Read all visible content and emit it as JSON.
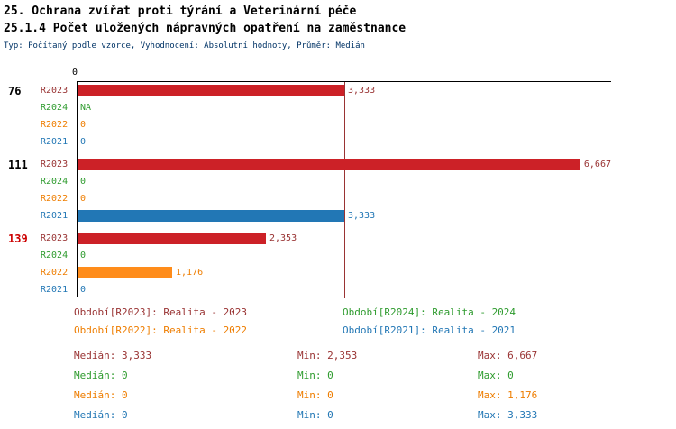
{
  "title_line1": "25. Ochrana zvířat proti týrání a Veterinární péče",
  "title_line2": "25.1.4 Počet uložených nápravných opatření na zaměstnance",
  "subtitle": "Typ: Počítaný podle vzorce, Vyhodnocení: Absolutní hodnoty, Průměr: Medián",
  "colors": {
    "series": {
      "R2023": {
        "bar": "#cc2127",
        "text": "#993333"
      },
      "R2024": {
        "bar": "#2e9b2e",
        "text": "#2e9b2e"
      },
      "R2022": {
        "bar": "#ff8c1a",
        "text": "#ee7d00"
      },
      "R2021": {
        "bar": "#2277b5",
        "text": "#2277b5"
      }
    },
    "median_line": "#993333",
    "subtitle_text": "#003366",
    "axis": "#000000"
  },
  "chart_data": {
    "type": "bar",
    "orientation": "horizontal",
    "title": "25.1.4 Počet uložených nápravných opatření na zaměstnance",
    "x_axis": {
      "zero_label": "0",
      "max": 6.667
    },
    "median_value": 3.333,
    "series_order": [
      "R2023",
      "R2024",
      "R2022",
      "R2021"
    ],
    "groups": [
      {
        "id": "76",
        "id_color": "#000000",
        "rows": [
          {
            "period": "R2023",
            "value": 3.333,
            "label": "3,333"
          },
          {
            "period": "R2024",
            "value": null,
            "label": "NA"
          },
          {
            "period": "R2022",
            "value": 0,
            "label": "0"
          },
          {
            "period": "R2021",
            "value": 0,
            "label": "0"
          }
        ]
      },
      {
        "id": "111",
        "id_color": "#000000",
        "rows": [
          {
            "period": "R2023",
            "value": 6.667,
            "label": "6,667"
          },
          {
            "period": "R2024",
            "value": 0,
            "label": "0"
          },
          {
            "period": "R2022",
            "value": 0,
            "label": "0"
          },
          {
            "period": "R2021",
            "value": 3.333,
            "label": "3,333"
          }
        ]
      },
      {
        "id": "139",
        "id_color": "#cc0000",
        "rows": [
          {
            "period": "R2023",
            "value": 2.353,
            "label": "2,353"
          },
          {
            "period": "R2024",
            "value": 0,
            "label": "0"
          },
          {
            "period": "R2022",
            "value": 1.176,
            "label": "1,176"
          },
          {
            "period": "R2021",
            "value": 0,
            "label": "0"
          }
        ]
      }
    ]
  },
  "legend": [
    {
      "series": "R2023",
      "label": "Období[R2023]: Realita - 2023"
    },
    {
      "series": "R2024",
      "label": "Období[R2024]: Realita - 2024"
    },
    {
      "series": "R2022",
      "label": "Období[R2022]: Realita - 2022"
    },
    {
      "series": "R2021",
      "label": "Období[R2021]: Realita - 2021"
    }
  ],
  "stats": [
    {
      "series": "R2023",
      "median": "Medián: 3,333",
      "min": "Min: 2,353",
      "max": "Max: 6,667"
    },
    {
      "series": "R2024",
      "median": "Medián: 0",
      "min": "Min: 0",
      "max": "Max: 0"
    },
    {
      "series": "R2022",
      "median": "Medián: 0",
      "min": "Min: 0",
      "max": "Max: 1,176"
    },
    {
      "series": "R2021",
      "median": "Medián: 0",
      "min": "Min: 0",
      "max": "Max: 3,333"
    }
  ]
}
